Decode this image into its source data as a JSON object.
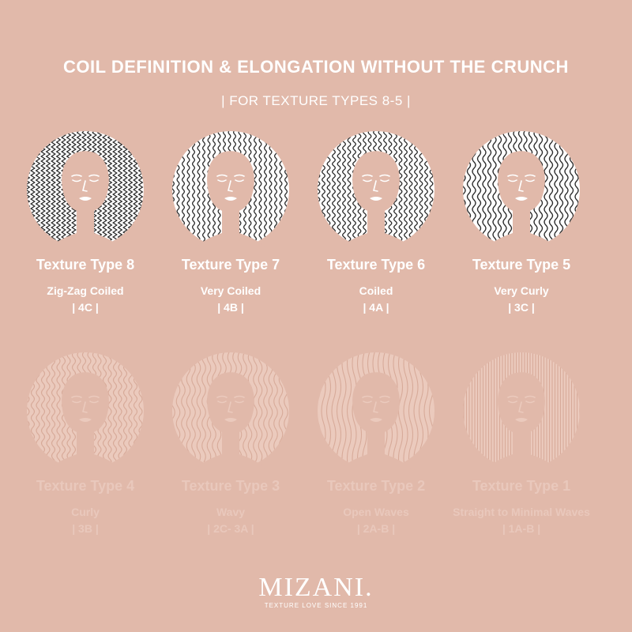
{
  "header": {
    "title": "COIL DEFINITION & ELONGATION WITHOUT THE CRUNCH",
    "subtitle": "| FOR TEXTURE TYPES 8-5 |"
  },
  "types_active": [
    {
      "name": "Texture Type 8",
      "desc": "Zig-Zag Coiled",
      "code": "| 4C |"
    },
    {
      "name": "Texture Type 7",
      "desc": "Very Coiled",
      "code": "| 4B |"
    },
    {
      "name": "Texture Type 6",
      "desc": "Coiled",
      "code": "| 4A |"
    },
    {
      "name": "Texture Type 5",
      "desc": "Very Curly",
      "code": "| 3C |"
    }
  ],
  "types_faded": [
    {
      "name": "Texture Type 4",
      "desc": "Curly",
      "code": "| 3B |"
    },
    {
      "name": "Texture Type 3",
      "desc": "Wavy",
      "code": "| 2C- 3A |"
    },
    {
      "name": "Texture Type 2",
      "desc": "Open Waves",
      "code": "| 2A-B |"
    },
    {
      "name": "Texture Type 1",
      "desc": "Straight to Minimal Waves",
      "code": "| 1A-B |"
    }
  ],
  "brand": {
    "logo": "MIZANI.",
    "tagline": "TEXTURE LOVE SINCE 1991"
  },
  "colors": {
    "background": "#e1b9aa",
    "active_text": "#ffffff",
    "faded_text": "#e9c8bc",
    "faded_circle": "#ebcabd",
    "pattern_ink": "#2a2a2a"
  }
}
